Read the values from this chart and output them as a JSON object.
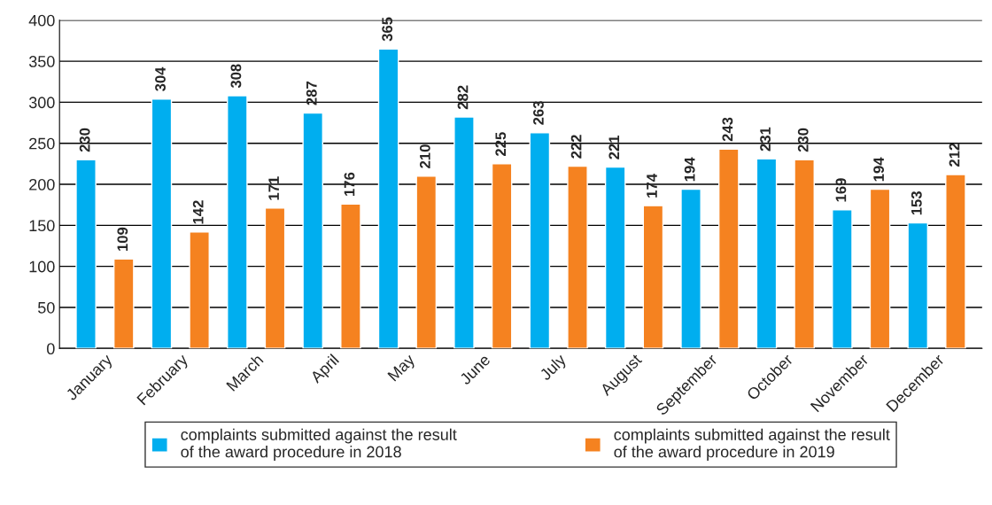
{
  "chart_data": {
    "type": "bar",
    "categories": [
      "January",
      "February",
      "March",
      "April",
      "May",
      "June",
      "July",
      "August",
      "September",
      "October",
      "November",
      "December"
    ],
    "series": [
      {
        "name": "complaints submitted against the result\nof the award procedure in 2018",
        "color": "#00aeef",
        "values": [
          230,
          304,
          308,
          287,
          365,
          282,
          263,
          221,
          194,
          231,
          169,
          153
        ]
      },
      {
        "name": "complaints submitted against the result\nof the award procedure in 2019",
        "color": "#f58220",
        "values": [
          109,
          142,
          171,
          176,
          210,
          225,
          222,
          174,
          243,
          230,
          194,
          212
        ]
      }
    ],
    "ylim": [
      0,
      400
    ],
    "yticks": [
      0,
      50,
      100,
      150,
      200,
      250,
      300,
      350,
      400
    ],
    "grid": "y",
    "legend": "bottom",
    "data_labels": true
  }
}
